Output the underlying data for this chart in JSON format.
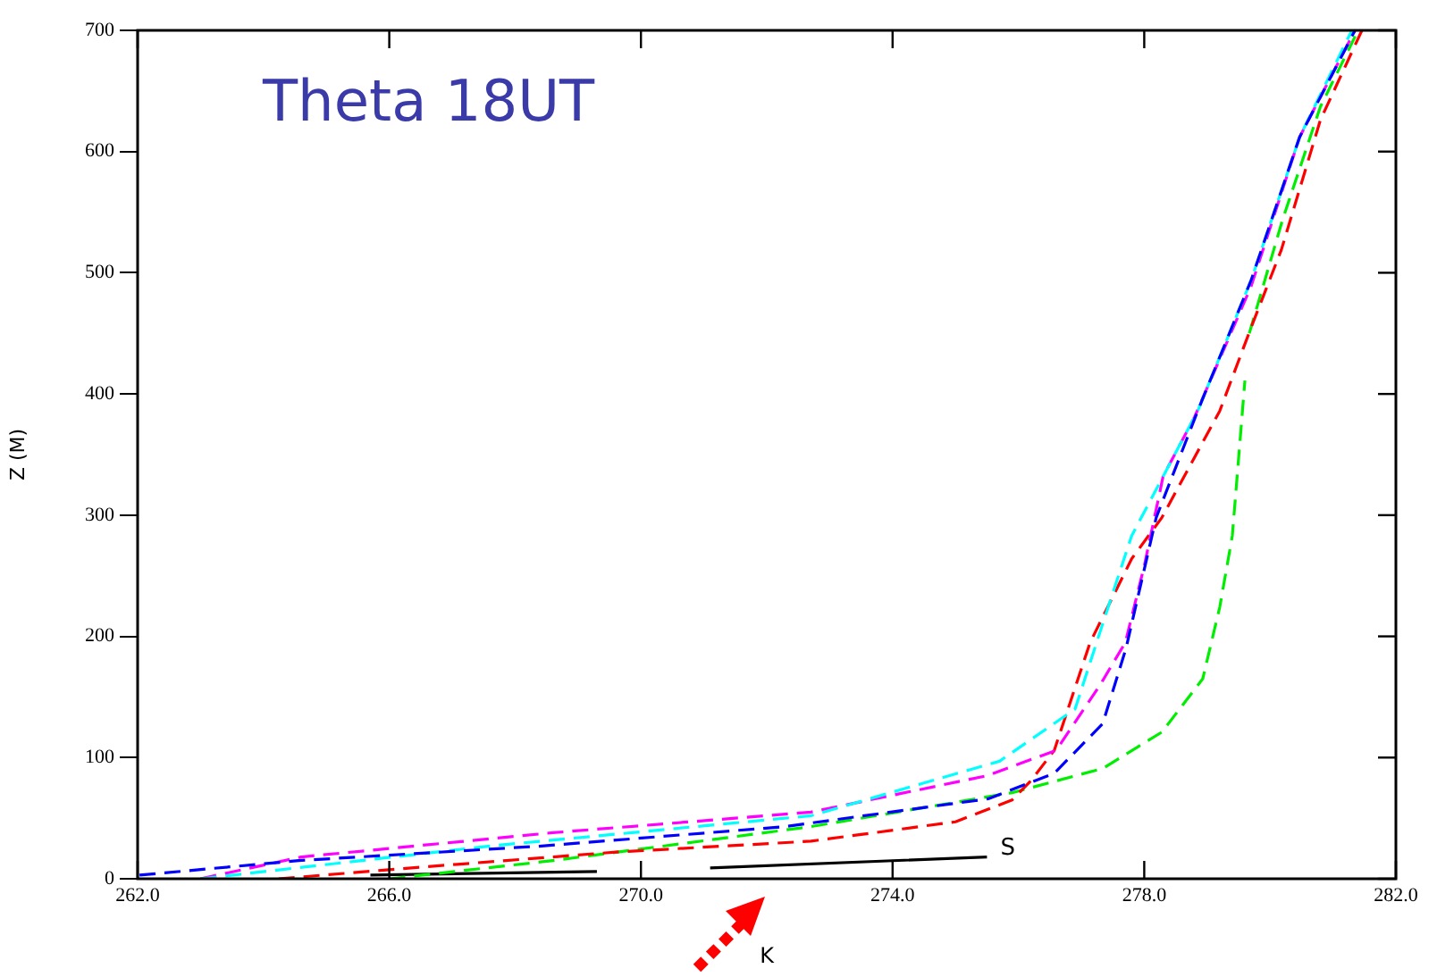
{
  "chart_data": {
    "type": "line",
    "title": "Theta 18UT",
    "xlabel": "K",
    "ylabel": "Z (M)",
    "xlim": [
      262,
      282
    ],
    "xticks": [
      {
        "value": 262,
        "label": "262.0"
      },
      {
        "value": 266,
        "label": "266.0"
      },
      {
        "value": 270,
        "label": "270.0"
      },
      {
        "value": 274,
        "label": "274.0"
      },
      {
        "value": 278,
        "label": "278.0"
      },
      {
        "value": 282,
        "label": "282.0"
      }
    ],
    "ylim": [
      0,
      700
    ],
    "yticks": [
      0,
      100,
      200,
      300,
      400,
      500,
      600,
      700
    ],
    "grid": false,
    "legend": false,
    "marker": "none",
    "annotations": [
      {
        "text": "S",
        "x": 275.6,
        "y": 22
      }
    ],
    "series": [
      {
        "color": "#0000ff",
        "line_style": "dashed",
        "x": [
          262.03,
          264.56,
          268.42,
          272.28,
          275.52,
          276.57,
          277.34,
          277.71,
          278.19,
          278.85,
          279.7,
          280.47,
          281.35
        ],
        "values": [
          3,
          15,
          27,
          43,
          66,
          87,
          128,
          190,
          298,
          386,
          494,
          612,
          700
        ]
      },
      {
        "color": "#00ffff",
        "line_style": "dashed",
        "x": [
          263.0,
          267.6,
          272.7,
          275.7,
          276.9,
          277.4,
          277.8,
          278.3,
          278.85,
          279.7,
          280.47,
          281.3
        ],
        "values": [
          0,
          27,
          52,
          97,
          140,
          220,
          283,
          332,
          386,
          494,
          612,
          700
        ]
      },
      {
        "color": "#ff00ff",
        "line_style": "dashed",
        "x": [
          263.0,
          264.6,
          268.6,
          272.7,
          275.5,
          276.6,
          277.3,
          277.7,
          278.0,
          278.3,
          278.8,
          279.7,
          280.47,
          281.35
        ],
        "values": [
          0,
          18,
          38,
          55,
          85,
          106,
          160,
          195,
          258,
          332,
          381,
          489,
          612,
          700
        ]
      },
      {
        "color": "#ff0000",
        "line_style": "dashed",
        "x": [
          264.24,
          266.6,
          269.6,
          272.7,
          275.0,
          275.9,
          276.2,
          276.57,
          277.14,
          277.8,
          278.28,
          279.2,
          279.7,
          280.18,
          280.8,
          281.46
        ],
        "values": [
          0,
          10,
          22,
          31,
          47,
          65,
          81,
          106,
          195,
          264,
          298,
          386,
          455,
          519,
          626,
          700
        ]
      },
      {
        "color": "#00ee00",
        "line_style": "dashed",
        "x": [
          266.0,
          268.6,
          272.7,
          275.9,
          277.34,
          278.28,
          278.93,
          279.2,
          279.4,
          279.6,
          279.62,
          279.67,
          280.2,
          280.8,
          281.4
        ],
        "values": [
          0,
          15,
          43,
          71,
          91,
          121,
          165,
          224,
          283,
          411,
          null,
          450,
          544,
          637,
          700
        ]
      },
      {
        "color": "#000000",
        "line_style": "solid",
        "x": [
          265.7,
          269.3,
          270.2,
          271.1,
          275.5
        ],
        "values": [
          3,
          6,
          null,
          9,
          18
        ]
      }
    ]
  }
}
